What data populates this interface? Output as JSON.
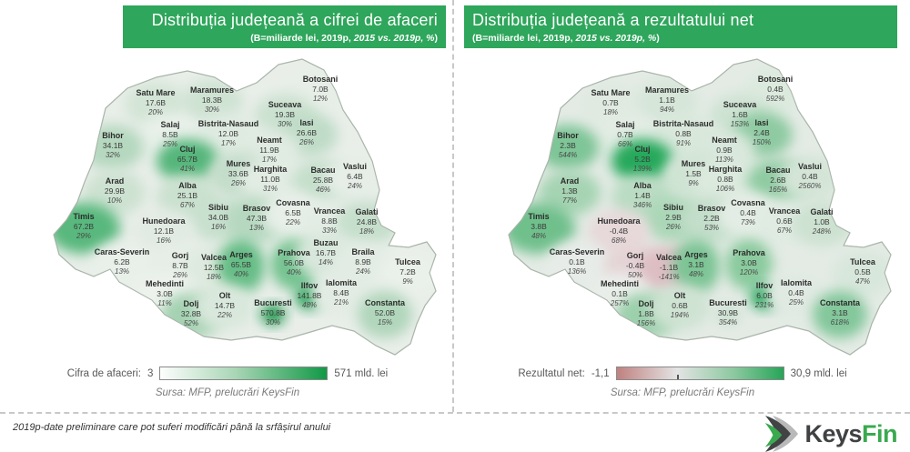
{
  "theme": {
    "header_bg": "#2ea65b",
    "header_text": "#ffffff",
    "logo_dark": "#3f4143",
    "logo_green": "#3aa94f",
    "negative_pink": "#ddbec3",
    "positive_green": "#1f9e51"
  },
  "panels": [
    {
      "title": "Distribuția județeană a cifrei de afaceri",
      "subtitle_pre": "(B=miliarde lei, 2019p, ",
      "subtitle_italic": "2015 vs. 2019p, %",
      "subtitle_post": ")",
      "map_base": "#e9eee9",
      "legend": {
        "label": "Cifra de afaceri:",
        "min": "3",
        "max": "571 mld. lei",
        "gradient": [
          {
            "c": "#fdfefd",
            "at": "0%"
          },
          {
            "c": "#a9d6b6",
            "at": "45%"
          },
          {
            "c": "#119946",
            "at": "100%"
          }
        ],
        "zero_tick": false
      },
      "source": "Sursa: MFP, prelucrări KeysFin",
      "counties": [
        {
          "name": "Satu Mare",
          "value": "17.6B",
          "pct": "20%",
          "color": "#d3e5d6"
        },
        {
          "name": "Maramures",
          "value": "18.3B",
          "pct": "30%",
          "color": "#cfe3d3"
        },
        {
          "name": "Botosani",
          "value": "7.0B",
          "pct": "12%",
          "color": "#e7eee7"
        },
        {
          "name": "Suceava",
          "value": "19.3B",
          "pct": "30%",
          "color": "#cce2d0"
        },
        {
          "name": "Iasi",
          "value": "26.6B",
          "pct": "26%",
          "color": "#bfdcc7"
        },
        {
          "name": "Salaj",
          "value": "8.5B",
          "pct": "25%",
          "color": "#e8f0e9"
        },
        {
          "name": "Bistrita-Nasaud",
          "value": "12.0B",
          "pct": "17%",
          "color": "#dfebe1"
        },
        {
          "name": "Neamt",
          "value": "11.9B",
          "pct": "17%",
          "color": "#e0ebe1"
        },
        {
          "name": "Bihor",
          "value": "34.1B",
          "pct": "32%",
          "color": "#b5d8bf"
        },
        {
          "name": "Cluj",
          "value": "65.7B",
          "pct": "41%",
          "color": "#54b67a"
        },
        {
          "name": "Mures",
          "value": "33.6B",
          "pct": "26%",
          "color": "#c4ddca"
        },
        {
          "name": "Harghita",
          "value": "11.0B",
          "pct": "31%",
          "color": "#e2ece3"
        },
        {
          "name": "Bacau",
          "value": "25.8B",
          "pct": "46%",
          "color": "#c5dfcb"
        },
        {
          "name": "Vaslui",
          "value": "6.4B",
          "pct": "24%",
          "color": "#e6eee7"
        },
        {
          "name": "Arad",
          "value": "29.9B",
          "pct": "10%",
          "color": "#cde2d1"
        },
        {
          "name": "Alba",
          "value": "25.1B",
          "pct": "67%",
          "color": "#cbe1cf"
        },
        {
          "name": "Sibiu",
          "value": "34.0B",
          "pct": "16%",
          "color": "#c8e0ce"
        },
        {
          "name": "Brasov",
          "value": "47.3B",
          "pct": "13%",
          "color": "#b6d8c0"
        },
        {
          "name": "Covasna",
          "value": "6.5B",
          "pct": "22%",
          "color": "#e7efe8"
        },
        {
          "name": "Vrancea",
          "value": "8.8B",
          "pct": "33%",
          "color": "#e4ede5"
        },
        {
          "name": "Galati",
          "value": "24.8B",
          "pct": "18%",
          "color": "#c6dfcc"
        },
        {
          "name": "Timis",
          "value": "67.2B",
          "pct": "29%",
          "color": "#58b87d"
        },
        {
          "name": "Hunedoara",
          "value": "12.1B",
          "pct": "16%",
          "color": "#e2ebe3"
        },
        {
          "name": "Caras-Severin",
          "value": "6.2B",
          "pct": "13%",
          "color": "#e9f0ea"
        },
        {
          "name": "Gorj",
          "value": "8.7B",
          "pct": "26%",
          "color": "#e6eee7"
        },
        {
          "name": "Valcea",
          "value": "12.5B",
          "pct": "18%",
          "color": "#deeadf"
        },
        {
          "name": "Arges",
          "value": "65.5B",
          "pct": "40%",
          "color": "#66bd86"
        },
        {
          "name": "Prahova",
          "value": "56.0B",
          "pct": "40%",
          "color": "#74c390"
        },
        {
          "name": "Buzau",
          "value": "16.7B",
          "pct": "14%",
          "color": "#d8e7db"
        },
        {
          "name": "Braila",
          "value": "8.9B",
          "pct": "24%",
          "color": "#e2ece4"
        },
        {
          "name": "Tulcea",
          "value": "7.2B",
          "pct": "9%",
          "color": "#eaf0ea"
        },
        {
          "name": "Mehedinti",
          "value": "3.0B",
          "pct": "11%",
          "color": "#edf2ed"
        },
        {
          "name": "Dolj",
          "value": "32.8B",
          "pct": "52%",
          "color": "#a5d2b2"
        },
        {
          "name": "Olt",
          "value": "14.7B",
          "pct": "22%",
          "color": "#d9e8dc"
        },
        {
          "name": "Bucuresti",
          "value": "570.8B",
          "pct": "30%",
          "color": "#139447"
        },
        {
          "name": "Ilfov",
          "value": "141.8B",
          "pct": "48%",
          "color": "#1d9b50"
        },
        {
          "name": "Ialomita",
          "value": "8.4B",
          "pct": "21%",
          "color": "#e3ece4"
        },
        {
          "name": "Constanta",
          "value": "52.0B",
          "pct": "15%",
          "color": "#b0d6bb"
        }
      ]
    },
    {
      "title": "Distribuția județeană a rezultatului net",
      "subtitle_pre": "(B=miliarde lei, 2019p, ",
      "subtitle_italic": "2015 vs. 2019p, %",
      "subtitle_post": ")",
      "map_base": "#e4ebe5",
      "legend": {
        "label": "Rezultatul net:",
        "min": "-1,1",
        "max": "30,9 mld. lei",
        "gradient": [
          {
            "c": "#bf8180",
            "at": "0%"
          },
          {
            "c": "#e4e4e4",
            "at": "36%"
          },
          {
            "c": "#8cc9a0",
            "at": "70%"
          },
          {
            "c": "#27a558",
            "at": "100%"
          }
        ],
        "zero_tick": true
      },
      "source": "Sursa: MFP, prelucrări KeysFin",
      "counties": [
        {
          "name": "Satu Mare",
          "value": "0.7B",
          "pct": "18%",
          "color": "#e0eae1"
        },
        {
          "name": "Maramures",
          "value": "1.1B",
          "pct": "94%",
          "color": "#d6e6d9"
        },
        {
          "name": "Botosani",
          "value": "0.4B",
          "pct": "592%",
          "color": "#dceade"
        },
        {
          "name": "Suceava",
          "value": "1.6B",
          "pct": "153%",
          "color": "#cfe3d3"
        },
        {
          "name": "Iasi",
          "value": "2.4B",
          "pct": "150%",
          "color": "#8ecaa2"
        },
        {
          "name": "Salaj",
          "value": "0.7B",
          "pct": "66%",
          "color": "#e2ece3"
        },
        {
          "name": "Bistrita-Nasaud",
          "value": "0.8B",
          "pct": "91%",
          "color": "#d9e8db"
        },
        {
          "name": "Neamt",
          "value": "0.9B",
          "pct": "113%",
          "color": "#d9e8dc"
        },
        {
          "name": "Bihor",
          "value": "2.3B",
          "pct": "544%",
          "color": "#7ec597"
        },
        {
          "name": "Cluj",
          "value": "5.2B",
          "pct": "139%",
          "color": "#27a95c"
        },
        {
          "name": "Mures",
          "value": "1.5B",
          "pct": "9%",
          "color": "#d0e4d4"
        },
        {
          "name": "Harghita",
          "value": "0.8B",
          "pct": "106%",
          "color": "#dceade"
        },
        {
          "name": "Bacau",
          "value": "2.6B",
          "pct": "165%",
          "color": "#8fcba2"
        },
        {
          "name": "Vaslui",
          "value": "0.4B",
          "pct": "2560%",
          "color": "#d4e5d7"
        },
        {
          "name": "Arad",
          "value": "1.3B",
          "pct": "77%",
          "color": "#a6d4b3"
        },
        {
          "name": "Alba",
          "value": "1.4B",
          "pct": "346%",
          "color": "#badcc3"
        },
        {
          "name": "Sibiu",
          "value": "2.9B",
          "pct": "26%",
          "color": "#abd7b7"
        },
        {
          "name": "Brasov",
          "value": "2.2B",
          "pct": "53%",
          "color": "#c3deca"
        },
        {
          "name": "Covasna",
          "value": "0.4B",
          "pct": "73%",
          "color": "#e4ede5"
        },
        {
          "name": "Vrancea",
          "value": "0.6B",
          "pct": "67%",
          "color": "#e0ebe2"
        },
        {
          "name": "Galati",
          "value": "1.0B",
          "pct": "248%",
          "color": "#cde2d1"
        },
        {
          "name": "Timis",
          "value": "3.8B",
          "pct": "48%",
          "color": "#6fc08c"
        },
        {
          "name": "Hunedoara",
          "value": "-0.4B",
          "pct": "68%",
          "color": "#e7d8da"
        },
        {
          "name": "Caras-Severin",
          "value": "0.1B",
          "pct": "136%",
          "color": "#e7ece8"
        },
        {
          "name": "Gorj",
          "value": "-0.4B",
          "pct": "50%",
          "color": "#e5d3d6"
        },
        {
          "name": "Valcea",
          "value": "-1.1B",
          "pct": "-141%",
          "color": "#ddbec3"
        },
        {
          "name": "Arges",
          "value": "3.1B",
          "pct": "48%",
          "color": "#7dc595"
        },
        {
          "name": "Prahova",
          "value": "3.0B",
          "pct": "120%",
          "color": "#8acb9e"
        },
        {
          "name": "Tulcea",
          "value": "0.5B",
          "pct": "47%",
          "color": "#d8e7db"
        },
        {
          "name": "Mehedinti",
          "value": "0.1B",
          "pct": "257%",
          "color": "#eaeeea"
        },
        {
          "name": "Dolj",
          "value": "1.8B",
          "pct": "156%",
          "color": "#9cd0ac"
        },
        {
          "name": "Olt",
          "value": "0.6B",
          "pct": "194%",
          "color": "#cfe3d3"
        },
        {
          "name": "Bucuresti",
          "value": "30.9B",
          "pct": "354%",
          "color": "#c9e0ce"
        },
        {
          "name": "Ilfov",
          "value": "6.0B",
          "pct": "231%",
          "color": "#1fa254"
        },
        {
          "name": "Ialomita",
          "value": "0.4B",
          "pct": "25%",
          "color": "#e0eae2"
        },
        {
          "name": "Constanta",
          "value": "3.1B",
          "pct": "618%",
          "color": "#83c79b"
        }
      ]
    }
  ],
  "footer": {
    "note": "2019p-date preliminare care pot suferi modificări până la srfâșirul anului",
    "logo_keys": "Keys",
    "logo_fin": "Fin"
  },
  "chart_data": [
    {
      "type": "heatmap",
      "subtype": "choropleth-map",
      "region": "Romania counties",
      "title": "Distribuția județeană a cifrei de afaceri",
      "unit": "miliarde lei (B)",
      "value_label": "Cifra de afaceri 2019p",
      "growth_label": "2015 vs. 2019p (%)",
      "range": [
        3,
        571
      ],
      "legend_position": "bottom",
      "points": [
        {
          "name": "Satu Mare",
          "value": 17.6,
          "growth_pct": 20
        },
        {
          "name": "Maramures",
          "value": 18.3,
          "growth_pct": 30
        },
        {
          "name": "Botosani",
          "value": 7.0,
          "growth_pct": 12
        },
        {
          "name": "Suceava",
          "value": 19.3,
          "growth_pct": 30
        },
        {
          "name": "Iasi",
          "value": 26.6,
          "growth_pct": 26
        },
        {
          "name": "Salaj",
          "value": 8.5,
          "growth_pct": 25
        },
        {
          "name": "Bistrita-Nasaud",
          "value": 12.0,
          "growth_pct": 17
        },
        {
          "name": "Neamt",
          "value": 11.9,
          "growth_pct": 17
        },
        {
          "name": "Bihor",
          "value": 34.1,
          "growth_pct": 32
        },
        {
          "name": "Cluj",
          "value": 65.7,
          "growth_pct": 41
        },
        {
          "name": "Mures",
          "value": 33.6,
          "growth_pct": 26
        },
        {
          "name": "Harghita",
          "value": 11.0,
          "growth_pct": 31
        },
        {
          "name": "Bacau",
          "value": 25.8,
          "growth_pct": 46
        },
        {
          "name": "Vaslui",
          "value": 6.4,
          "growth_pct": 24
        },
        {
          "name": "Arad",
          "value": 29.9,
          "growth_pct": 10
        },
        {
          "name": "Alba",
          "value": 25.1,
          "growth_pct": 67
        },
        {
          "name": "Sibiu",
          "value": 34.0,
          "growth_pct": 16
        },
        {
          "name": "Brasov",
          "value": 47.3,
          "growth_pct": 13
        },
        {
          "name": "Covasna",
          "value": 6.5,
          "growth_pct": 22
        },
        {
          "name": "Vrancea",
          "value": 8.8,
          "growth_pct": 33
        },
        {
          "name": "Galati",
          "value": 24.8,
          "growth_pct": 18
        },
        {
          "name": "Timis",
          "value": 67.2,
          "growth_pct": 29
        },
        {
          "name": "Hunedoara",
          "value": 12.1,
          "growth_pct": 16
        },
        {
          "name": "Caras-Severin",
          "value": 6.2,
          "growth_pct": 13
        },
        {
          "name": "Gorj",
          "value": 8.7,
          "growth_pct": 26
        },
        {
          "name": "Valcea",
          "value": 12.5,
          "growth_pct": 18
        },
        {
          "name": "Arges",
          "value": 65.5,
          "growth_pct": 40
        },
        {
          "name": "Prahova",
          "value": 56.0,
          "growth_pct": 40
        },
        {
          "name": "Buzau",
          "value": 16.7,
          "growth_pct": 14
        },
        {
          "name": "Braila",
          "value": 8.9,
          "growth_pct": 24
        },
        {
          "name": "Tulcea",
          "value": 7.2,
          "growth_pct": 9
        },
        {
          "name": "Mehedinti",
          "value": 3.0,
          "growth_pct": 11
        },
        {
          "name": "Dolj",
          "value": 32.8,
          "growth_pct": 52
        },
        {
          "name": "Olt",
          "value": 14.7,
          "growth_pct": 22
        },
        {
          "name": "Bucuresti",
          "value": 570.8,
          "growth_pct": 30
        },
        {
          "name": "Ilfov",
          "value": 141.8,
          "growth_pct": 48
        },
        {
          "name": "Ialomita",
          "value": 8.4,
          "growth_pct": 21
        },
        {
          "name": "Constanta",
          "value": 52.0,
          "growth_pct": 15
        }
      ]
    },
    {
      "type": "heatmap",
      "subtype": "choropleth-map",
      "region": "Romania counties",
      "title": "Distribuția județeană a rezultatului net",
      "unit": "miliarde lei (B)",
      "value_label": "Rezultatul net 2019p",
      "growth_label": "2015 vs. 2019p (%)",
      "range": [
        -1.1,
        30.9
      ],
      "legend_position": "bottom",
      "points": [
        {
          "name": "Satu Mare",
          "value": 0.7,
          "growth_pct": 18
        },
        {
          "name": "Maramures",
          "value": 1.1,
          "growth_pct": 94
        },
        {
          "name": "Botosani",
          "value": 0.4,
          "growth_pct": 592
        },
        {
          "name": "Suceava",
          "value": 1.6,
          "growth_pct": 153
        },
        {
          "name": "Iasi",
          "value": 2.4,
          "growth_pct": 150
        },
        {
          "name": "Salaj",
          "value": 0.7,
          "growth_pct": 66
        },
        {
          "name": "Bistrita-Nasaud",
          "value": 0.8,
          "growth_pct": 91
        },
        {
          "name": "Neamt",
          "value": 0.9,
          "growth_pct": 113
        },
        {
          "name": "Bihor",
          "value": 2.3,
          "growth_pct": 544
        },
        {
          "name": "Cluj",
          "value": 5.2,
          "growth_pct": 139
        },
        {
          "name": "Mures",
          "value": 1.5,
          "growth_pct": 9
        },
        {
          "name": "Harghita",
          "value": 0.8,
          "growth_pct": 106
        },
        {
          "name": "Bacau",
          "value": 2.6,
          "growth_pct": 165
        },
        {
          "name": "Vaslui",
          "value": 0.4,
          "growth_pct": 2560
        },
        {
          "name": "Arad",
          "value": 1.3,
          "growth_pct": 77
        },
        {
          "name": "Alba",
          "value": 1.4,
          "growth_pct": 346
        },
        {
          "name": "Sibiu",
          "value": 2.9,
          "growth_pct": 26
        },
        {
          "name": "Brasov",
          "value": 2.2,
          "growth_pct": 53
        },
        {
          "name": "Covasna",
          "value": 0.4,
          "growth_pct": 73
        },
        {
          "name": "Vrancea",
          "value": 0.6,
          "growth_pct": 67
        },
        {
          "name": "Galati",
          "value": 1.0,
          "growth_pct": 248
        },
        {
          "name": "Timis",
          "value": 3.8,
          "growth_pct": 48
        },
        {
          "name": "Hunedoara",
          "value": -0.4,
          "growth_pct": 68
        },
        {
          "name": "Caras-Severin",
          "value": 0.1,
          "growth_pct": 136
        },
        {
          "name": "Gorj",
          "value": -0.4,
          "growth_pct": 50
        },
        {
          "name": "Valcea",
          "value": -1.1,
          "growth_pct": -141
        },
        {
          "name": "Arges",
          "value": 3.1,
          "growth_pct": 48
        },
        {
          "name": "Prahova",
          "value": 3.0,
          "growth_pct": 120
        },
        {
          "name": "Tulcea",
          "value": 0.5,
          "growth_pct": 47
        },
        {
          "name": "Mehedinti",
          "value": 0.1,
          "growth_pct": 257
        },
        {
          "name": "Dolj",
          "value": 1.8,
          "growth_pct": 156
        },
        {
          "name": "Olt",
          "value": 0.6,
          "growth_pct": 194
        },
        {
          "name": "Bucuresti",
          "value": 30.9,
          "growth_pct": 354
        },
        {
          "name": "Ilfov",
          "value": 6.0,
          "growth_pct": 231
        },
        {
          "name": "Ialomita",
          "value": 0.4,
          "growth_pct": 25
        },
        {
          "name": "Constanta",
          "value": 3.1,
          "growth_pct": 618
        }
      ]
    }
  ]
}
